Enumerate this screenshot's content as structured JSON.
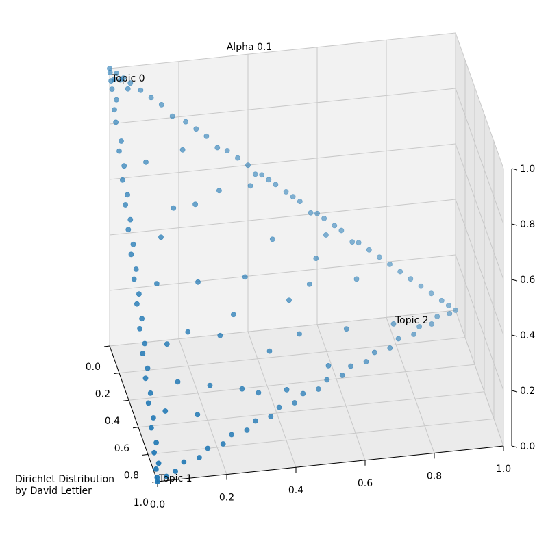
{
  "chart_data": {
    "type": "scatter",
    "title": "Alpha 0.1",
    "xlabel": "",
    "ylabel": "",
    "zlabel": "",
    "xlim": [
      0.0,
      1.0
    ],
    "ylim": [
      0.0,
      1.0
    ],
    "zlim": [
      0.0,
      1.0
    ],
    "x_ticks": [
      "0.0",
      "0.2",
      "0.4",
      "0.6",
      "0.8",
      "1.0"
    ],
    "y_ticks": [
      "0.0",
      "0.2",
      "0.4",
      "0.6",
      "0.8",
      "1.0"
    ],
    "z_ticks": [
      "0.0",
      "0.2",
      "0.4",
      "0.6",
      "0.8",
      "1.0"
    ],
    "grid": true,
    "vertex_labels": [
      "Topic 0",
      "Topic 1",
      "Topic 2"
    ],
    "color": "#1f77b4",
    "note": "Dirichlet Distribution\nby David Lettier",
    "points": [
      [
        0.0,
        0.0,
        1.0
      ],
      [
        0.01,
        0.0,
        0.99
      ],
      [
        0.0,
        0.02,
        0.98
      ],
      [
        0.02,
        0.01,
        0.97
      ],
      [
        0.0,
        0.04,
        0.96
      ],
      [
        0.03,
        0.0,
        0.97
      ],
      [
        0.01,
        0.03,
        0.96
      ],
      [
        0.05,
        0.0,
        0.95
      ],
      [
        0.0,
        0.06,
        0.94
      ],
      [
        0.02,
        0.05,
        0.93
      ],
      [
        0.07,
        0.01,
        0.92
      ],
      [
        0.0,
        0.09,
        0.91
      ],
      [
        0.1,
        0.0,
        0.9
      ],
      [
        0.0,
        0.12,
        0.88
      ],
      [
        0.13,
        0.0,
        0.87
      ],
      [
        0.0,
        0.15,
        0.85
      ],
      [
        0.17,
        0.01,
        0.82
      ],
      [
        0.01,
        0.18,
        0.81
      ],
      [
        0.2,
        0.0,
        0.8
      ],
      [
        0.0,
        0.22,
        0.78
      ],
      [
        0.23,
        0.01,
        0.76
      ],
      [
        0.0,
        0.25,
        0.75
      ],
      [
        0.27,
        0.0,
        0.73
      ],
      [
        0.0,
        0.28,
        0.72
      ],
      [
        0.3,
        0.01,
        0.69
      ],
      [
        0.01,
        0.31,
        0.68
      ],
      [
        0.33,
        0.0,
        0.67
      ],
      [
        0.0,
        0.34,
        0.66
      ],
      [
        0.36,
        0.01,
        0.63
      ],
      [
        0.0,
        0.37,
        0.63
      ],
      [
        0.39,
        0.0,
        0.61
      ],
      [
        0.0,
        0.4,
        0.6
      ],
      [
        0.42,
        0.01,
        0.57
      ],
      [
        0.01,
        0.42,
        0.57
      ],
      [
        0.45,
        0.0,
        0.55
      ],
      [
        0.0,
        0.44,
        0.56
      ],
      [
        0.48,
        0.01,
        0.51
      ],
      [
        0.0,
        0.46,
        0.54
      ],
      [
        0.51,
        0.0,
        0.49
      ],
      [
        0.0,
        0.48,
        0.52
      ],
      [
        0.54,
        0.01,
        0.45
      ],
      [
        0.0,
        0.51,
        0.49
      ],
      [
        0.57,
        0.0,
        0.43
      ],
      [
        0.0,
        0.53,
        0.47
      ],
      [
        0.6,
        0.01,
        0.39
      ],
      [
        0.0,
        0.55,
        0.45
      ],
      [
        0.63,
        0.0,
        0.37
      ],
      [
        0.01,
        0.58,
        0.41
      ],
      [
        0.66,
        0.01,
        0.33
      ],
      [
        0.0,
        0.6,
        0.4
      ],
      [
        0.69,
        0.0,
        0.31
      ],
      [
        0.0,
        0.62,
        0.38
      ],
      [
        0.72,
        0.01,
        0.27
      ],
      [
        0.0,
        0.65,
        0.35
      ],
      [
        0.75,
        0.0,
        0.25
      ],
      [
        0.0,
        0.67,
        0.33
      ],
      [
        0.78,
        0.01,
        0.21
      ],
      [
        0.01,
        0.7,
        0.29
      ],
      [
        0.81,
        0.0,
        0.19
      ],
      [
        0.0,
        0.72,
        0.28
      ],
      [
        0.84,
        0.01,
        0.15
      ],
      [
        0.0,
        0.75,
        0.25
      ],
      [
        0.87,
        0.0,
        0.13
      ],
      [
        0.0,
        0.78,
        0.22
      ],
      [
        0.9,
        0.01,
        0.09
      ],
      [
        0.0,
        0.81,
        0.19
      ],
      [
        0.93,
        0.0,
        0.07
      ],
      [
        0.0,
        0.84,
        0.16
      ],
      [
        0.95,
        0.01,
        0.04
      ],
      [
        0.0,
        0.87,
        0.13
      ],
      [
        0.97,
        0.0,
        0.03
      ],
      [
        0.0,
        0.9,
        0.1
      ],
      [
        0.99,
        0.0,
        0.01
      ],
      [
        0.0,
        0.93,
        0.07
      ],
      [
        0.0,
        0.96,
        0.04
      ],
      [
        0.0,
        0.98,
        0.02
      ],
      [
        0.0,
        1.0,
        0.0
      ],
      [
        0.02,
        0.98,
        0.0
      ],
      [
        0.05,
        0.94,
        0.01
      ],
      [
        0.08,
        0.92,
        0.0
      ],
      [
        0.11,
        0.88,
        0.01
      ],
      [
        0.14,
        0.86,
        0.0
      ],
      [
        0.18,
        0.81,
        0.01
      ],
      [
        0.22,
        0.78,
        0.0
      ],
      [
        0.26,
        0.73,
        0.01
      ],
      [
        0.3,
        0.7,
        0.0
      ],
      [
        0.34,
        0.65,
        0.01
      ],
      [
        0.38,
        0.62,
        0.0
      ],
      [
        0.42,
        0.57,
        0.01
      ],
      [
        0.46,
        0.54,
        0.0
      ],
      [
        0.5,
        0.49,
        0.01
      ],
      [
        0.54,
        0.46,
        0.0
      ],
      [
        0.58,
        0.41,
        0.01
      ],
      [
        0.62,
        0.38,
        0.0
      ],
      [
        0.66,
        0.33,
        0.01
      ],
      [
        0.7,
        0.3,
        0.0
      ],
      [
        0.74,
        0.25,
        0.01
      ],
      [
        0.78,
        0.22,
        0.0
      ],
      [
        0.82,
        0.17,
        0.01
      ],
      [
        0.86,
        0.14,
        0.0
      ],
      [
        0.9,
        0.09,
        0.01
      ],
      [
        0.94,
        0.06,
        0.0
      ],
      [
        0.97,
        0.03,
        0.0
      ],
      [
        1.0,
        0.0,
        0.0
      ],
      [
        0.12,
        0.3,
        0.58
      ],
      [
        0.25,
        0.15,
        0.6
      ],
      [
        0.4,
        0.2,
        0.4
      ],
      [
        0.3,
        0.35,
        0.35
      ],
      [
        0.55,
        0.15,
        0.3
      ],
      [
        0.2,
        0.55,
        0.25
      ],
      [
        0.45,
        0.4,
        0.15
      ],
      [
        0.6,
        0.3,
        0.1
      ],
      [
        0.35,
        0.5,
        0.15
      ],
      [
        0.15,
        0.45,
        0.4
      ],
      [
        0.5,
        0.25,
        0.25
      ],
      [
        0.65,
        0.2,
        0.15
      ],
      [
        0.1,
        0.7,
        0.2
      ],
      [
        0.25,
        0.65,
        0.1
      ],
      [
        0.7,
        0.1,
        0.2
      ],
      [
        0.05,
        0.4,
        0.55
      ],
      [
        0.35,
        0.1,
        0.55
      ],
      [
        0.48,
        0.07,
        0.45
      ],
      [
        0.2,
        0.22,
        0.58
      ],
      [
        0.58,
        0.35,
        0.07
      ],
      [
        0.12,
        0.58,
        0.3
      ],
      [
        0.42,
        0.3,
        0.28
      ],
      [
        0.28,
        0.48,
        0.24
      ],
      [
        0.75,
        0.15,
        0.1
      ],
      [
        0.08,
        0.2,
        0.72
      ],
      [
        0.18,
        0.08,
        0.74
      ],
      [
        0.62,
        0.08,
        0.3
      ],
      [
        0.38,
        0.58,
        0.04
      ],
      [
        0.04,
        0.62,
        0.34
      ],
      [
        0.8,
        0.05,
        0.15
      ],
      [
        0.52,
        0.44,
        0.04
      ],
      [
        0.15,
        0.8,
        0.05
      ]
    ]
  }
}
